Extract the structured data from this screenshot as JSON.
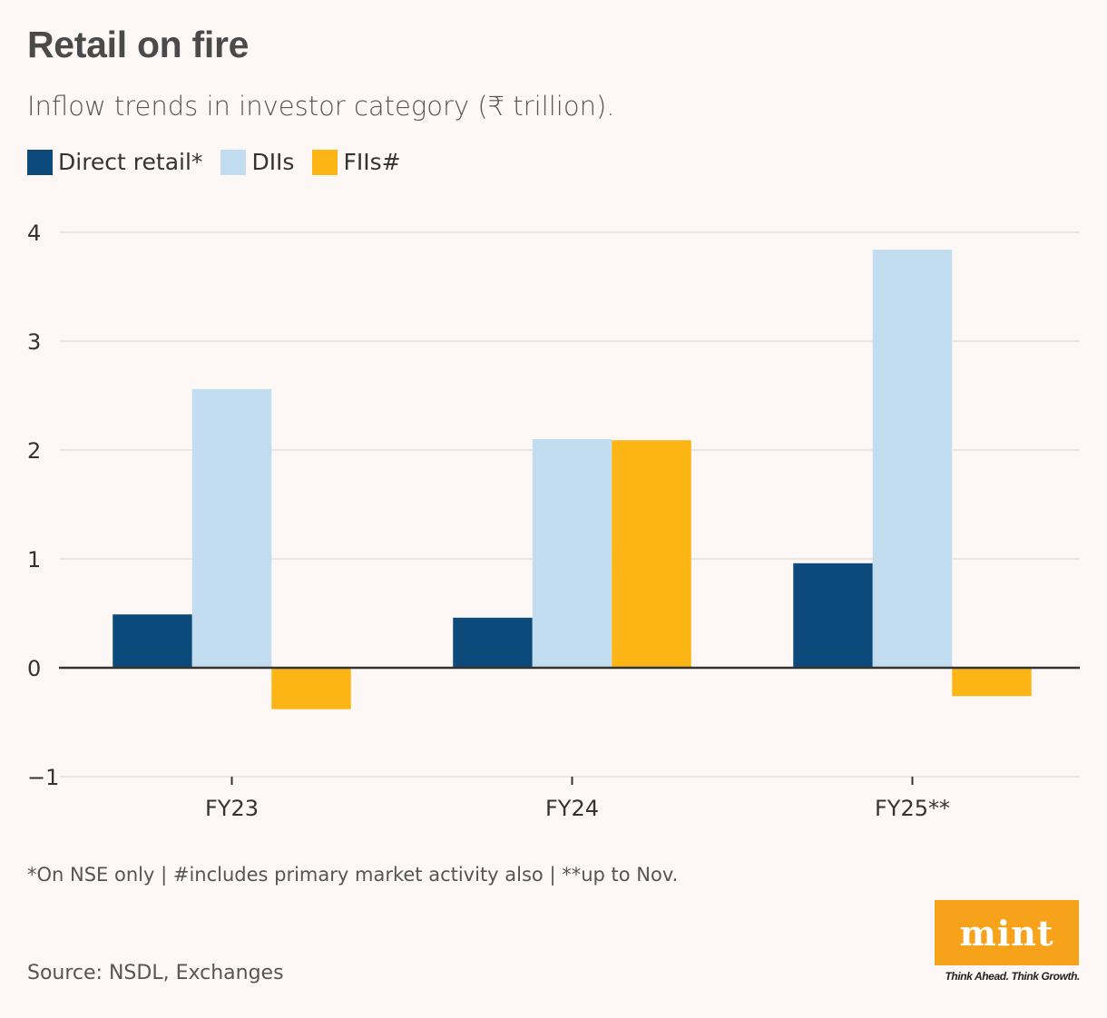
{
  "title": "Retail on fire",
  "subtitle": "Inflow trends in investor category (₹ trillion).",
  "legend": [
    {
      "label": "Direct retail*",
      "color": "#0b4a7a"
    },
    {
      "label": "DIIs",
      "color": "#c2ddef"
    },
    {
      "label": "FIIs#",
      "color": "#fdb515"
    }
  ],
  "chart_data": {
    "type": "bar",
    "title": "Retail on fire",
    "subtitle": "Inflow trends in investor category (₹ trillion).",
    "categories": [
      "FY23",
      "FY24",
      "FY25**"
    ],
    "series": [
      {
        "name": "Direct retail*",
        "color": "#0b4a7a",
        "values": [
          0.49,
          0.46,
          0.96
        ]
      },
      {
        "name": "DIIs",
        "color": "#c2ddef",
        "values": [
          2.56,
          2.1,
          3.84
        ]
      },
      {
        "name": "FIIs#",
        "color": "#fdb515",
        "values": [
          -0.38,
          2.09,
          -0.26
        ]
      }
    ],
    "yticks": [
      "4",
      "3",
      "2",
      "1",
      "0",
      "−1"
    ],
    "ytick_values": [
      4,
      3,
      2,
      1,
      0,
      -1
    ],
    "ylim": [
      -1,
      4
    ],
    "xlabel": "",
    "ylabel": "",
    "grid": true,
    "legend_position": "top-left"
  },
  "footnote": "*On NSE only | #includes primary market activity also | **up to Nov.",
  "source": "Source: NSDL, Exchanges",
  "logo": {
    "word": "mint",
    "tagline": "Think Ahead. Think Growth."
  }
}
